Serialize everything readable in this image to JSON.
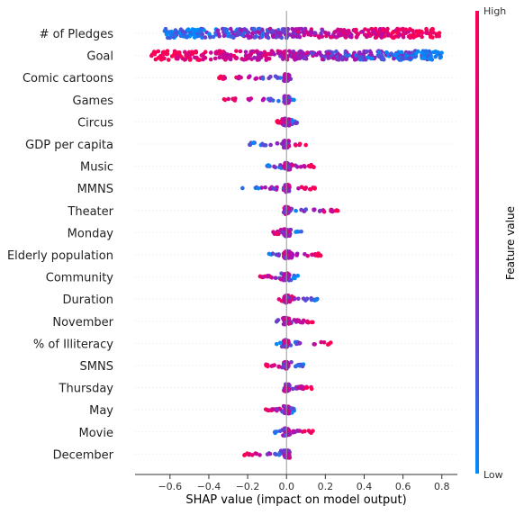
{
  "chart_data": {
    "type": "scatter",
    "subtype": "shap-beeswarm-summary",
    "title": "",
    "xlabel": "SHAP value (impact on model output)",
    "ylabel": "",
    "xlim": [
      -0.78,
      0.88
    ],
    "x_ticks": [
      -0.6,
      -0.4,
      -0.2,
      0.0,
      0.2,
      0.4,
      0.6,
      0.8
    ],
    "x_tick_labels": [
      "−0.6",
      "−0.4",
      "−0.2",
      "0.0",
      "0.2",
      "0.4",
      "0.6",
      "0.8"
    ],
    "grid": false,
    "colorbar": {
      "label": "Feature value",
      "high_label": "High",
      "low_label": "Low",
      "high_color": "#ff0052",
      "mid_color": "#b00cb0",
      "low_color": "#008bfb"
    },
    "features": [
      {
        "name": "# of Pledges",
        "min": -0.63,
        "max": 0.8,
        "high_side": "right"
      },
      {
        "name": "Goal",
        "min": -0.7,
        "max": 0.8,
        "high_side": "left"
      },
      {
        "name": "Comic cartoons",
        "min": -0.37,
        "max": 0.03,
        "high_side": "left"
      },
      {
        "name": "Games",
        "min": -0.36,
        "max": 0.06,
        "high_side": "left"
      },
      {
        "name": "Circus",
        "min": -0.05,
        "max": 0.06,
        "high_side": "left"
      },
      {
        "name": "GDP per capita",
        "min": -0.2,
        "max": 0.14,
        "high_side": "right"
      },
      {
        "name": "Music",
        "min": -0.11,
        "max": 0.15,
        "high_side": "right"
      },
      {
        "name": "MMNS",
        "min": -0.23,
        "max": 0.16,
        "high_side": "right"
      },
      {
        "name": "Theater",
        "min": -0.01,
        "max": 0.29,
        "high_side": "right"
      },
      {
        "name": "Monday",
        "min": -0.09,
        "max": 0.08,
        "high_side": "left"
      },
      {
        "name": "Elderly population",
        "min": -0.11,
        "max": 0.18,
        "high_side": "right"
      },
      {
        "name": "Community",
        "min": -0.15,
        "max": 0.06,
        "high_side": "left"
      },
      {
        "name": "Duration",
        "min": -0.04,
        "max": 0.16,
        "high_side": "left"
      },
      {
        "name": "November",
        "min": -0.07,
        "max": 0.14,
        "high_side": "right"
      },
      {
        "name": "% of Illiteracy",
        "min": -0.06,
        "max": 0.26,
        "high_side": "right"
      },
      {
        "name": "SMNS",
        "min": -0.11,
        "max": 0.09,
        "high_side": "left"
      },
      {
        "name": "Thursday",
        "min": -0.02,
        "max": 0.13,
        "high_side": "right"
      },
      {
        "name": "May",
        "min": -0.11,
        "max": 0.04,
        "high_side": "left"
      },
      {
        "name": "Movie",
        "min": -0.06,
        "max": 0.14,
        "high_side": "right"
      },
      {
        "name": "December",
        "min": -0.22,
        "max": 0.02,
        "high_side": "left"
      }
    ]
  }
}
